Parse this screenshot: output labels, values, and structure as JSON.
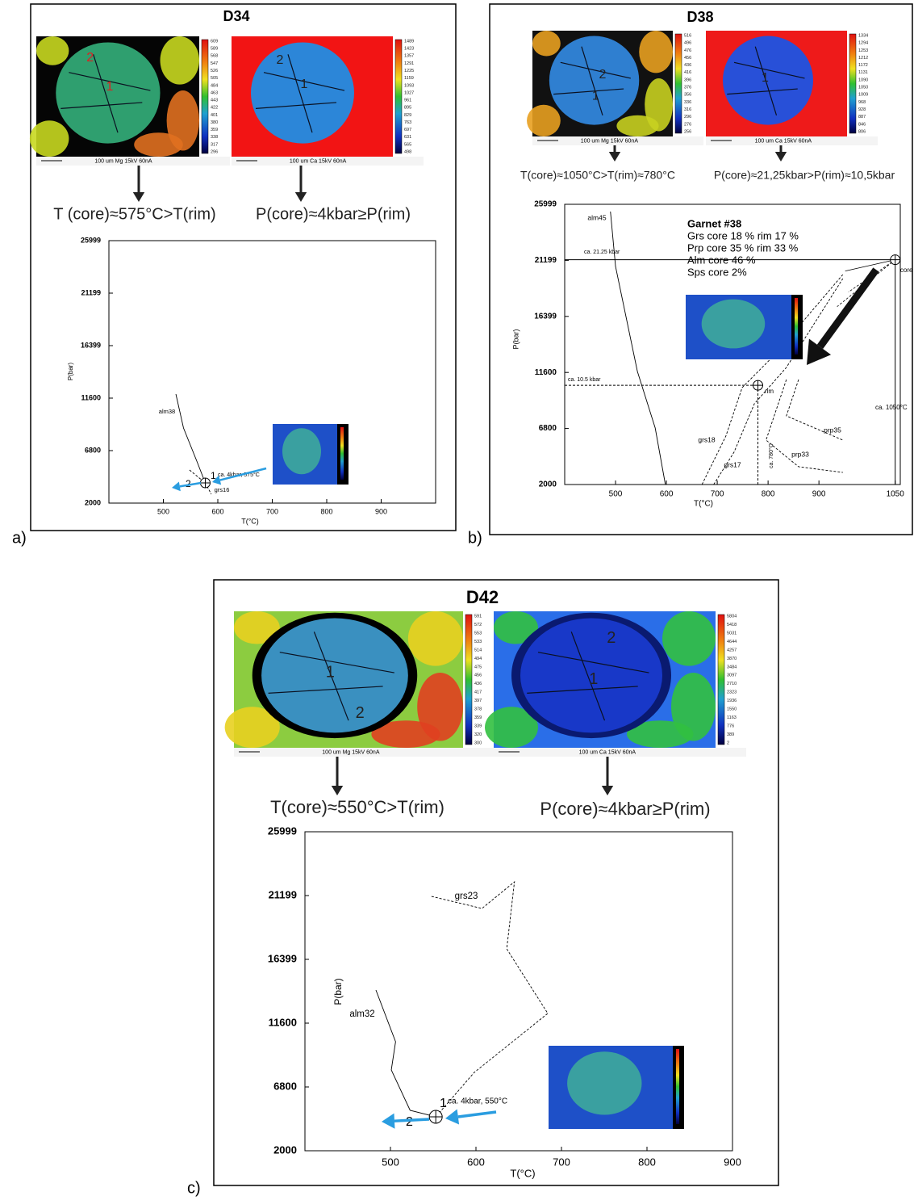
{
  "panels": [
    {
      "label": "a)",
      "title": "D34",
      "results": [
        "T (core)≈575°C>T(rim)",
        "P(core)≈4kbar≥P(rim)"
      ],
      "maps": [
        {
          "labels": [
            "2",
            "1"
          ],
          "colorbar": [
            609,
            589,
            568,
            547,
            526,
            505,
            484,
            463,
            443,
            422,
            401,
            380,
            359,
            338,
            317,
            296
          ],
          "caption": "100 um  Mg  15kV 60nA"
        },
        {
          "labels": [
            "2",
            "1"
          ],
          "colorbar": [
            1489,
            1423,
            1357,
            1291,
            1225,
            1159,
            1093,
            1027,
            961,
            895,
            829,
            763,
            697,
            631,
            565,
            498
          ],
          "caption": "100 um  Ca  15kV 60nA"
        }
      ]
    },
    {
      "label": "b)",
      "title": "D38",
      "results": [
        "T(core)≈1050°C>T(rim)≈780°C",
        "P(core)≈21,25kbar>P(rim)≈10,5kbar"
      ],
      "maps": [
        {
          "labels": [
            "2",
            "1"
          ],
          "colorbar": [
            516,
            496,
            476,
            456,
            436,
            416,
            396,
            376,
            356,
            336,
            316,
            296,
            276,
            256
          ],
          "caption": "100 um  Mg  15kV 60nA"
        },
        {
          "labels": [
            "1"
          ],
          "colorbar": [
            1334,
            1294,
            1253,
            1212,
            1172,
            1131,
            1090,
            1050,
            1009,
            968,
            928,
            887,
            846,
            806
          ],
          "caption": "100 um  Ca  15kV 60nA"
        }
      ]
    },
    {
      "label": "c)",
      "title": "D42",
      "results": [
        "T(core)≈550°C>T(rim)",
        "P(core)≈4kbar≥P(rim)"
      ],
      "maps": [
        {
          "labels": [
            "1",
            "2"
          ],
          "colorbar": [
            591,
            572,
            553,
            533,
            514,
            494,
            475,
            456,
            436,
            417,
            397,
            378,
            359,
            339,
            320,
            300
          ],
          "caption": "100 um  Mg  15kV 60nA"
        },
        {
          "labels": [
            "2",
            "1"
          ],
          "colorbar": [
            5804,
            5418,
            5031,
            4644,
            4257,
            3870,
            3484,
            3097,
            2710,
            2323,
            1936,
            1550,
            1163,
            776,
            389,
            2
          ],
          "caption": "100 um  Ca  15kV 60nA"
        }
      ]
    }
  ],
  "chart_data": [
    {
      "type": "line",
      "x_label": "T(°C)",
      "y_label": "P(bar)",
      "xlim": [
        400,
        1000
      ],
      "ylim": [
        2000,
        25999
      ],
      "xticks": [
        500,
        600,
        700,
        800,
        900
      ],
      "yticks": [
        2000,
        6800,
        11600,
        16399,
        21199,
        25999
      ],
      "series": [
        {
          "name": "alm38",
          "color": "#000000",
          "dashed": false,
          "x": [
            523,
            537,
            562,
            577
          ],
          "values": [
            11969,
            8867,
            5766,
            3846
          ]
        },
        {
          "name": "grs16",
          "color": "#000000",
          "dashed": true,
          "x": [
            548,
            577,
            588
          ],
          "values": [
            5028,
            3846,
            2812
          ]
        }
      ],
      "points": [
        {
          "x": 577,
          "y": 3846
        }
      ],
      "annotations": [
        "ca. 4kbar, 575°C",
        "1",
        "2"
      ]
    },
    {
      "type": "line",
      "x_label": "T(°C)",
      "y_label": "P(bar)",
      "xlim": [
        400,
        1060
      ],
      "ylim": [
        2000,
        25999
      ],
      "xticks": [
        500,
        600,
        700,
        800,
        900,
        1050
      ],
      "yticks": [
        2000,
        6800,
        11600,
        16399,
        21199,
        25999
      ],
      "series": [
        {
          "name": "alm45",
          "color": "#000000",
          "dashed": false,
          "x": [
            490,
            500,
            543,
            578,
            598
          ],
          "values": [
            25377,
            20674,
            11683,
            6841,
            2000
          ]
        },
        {
          "name": "grs18",
          "color": "#000000",
          "dashed": true,
          "x": [
            670,
            717,
            749,
            812,
            947
          ],
          "values": [
            2000,
            6150,
            10299,
            13066,
            19982
          ]
        },
        {
          "name": "grs17",
          "color": "#000000",
          "dashed": true,
          "x": [
            693,
            733,
            773,
            836,
            947
          ],
          "values": [
            2000,
            4766,
            8916,
            12028,
            19636
          ]
        },
        {
          "name": "prp35",
          "color": "#000000",
          "dashed": true,
          "x": [
            860,
            836,
            947
          ],
          "values": [
            10991,
            7879,
            5804
          ]
        },
        {
          "name": "prp33",
          "color": "#000000",
          "dashed": true,
          "x": [
            836,
            796,
            860,
            947
          ],
          "values": [
            10991,
            5804,
            3522,
            3037
          ]
        }
      ],
      "points": [
        {
          "label": "core",
          "x": 1050,
          "y": 21250
        },
        {
          "label": "rim",
          "x": 780,
          "y": 10500
        }
      ],
      "annotations": [
        "ca. 21.25 kbar",
        "ca. 10.5 kbar",
        "ca. 780°C",
        "ca. 1050°C"
      ],
      "text_box": [
        "Garnet #38",
        "Grs core 18 % rim 17 %",
        "Prp core 35 % rim 33 %",
        "Alm core 46 %",
        "Sps core 2%"
      ]
    },
    {
      "type": "line",
      "x_label": "T(°C)",
      "y_label": "P(bar)",
      "xlim": [
        400,
        900
      ],
      "ylim": [
        2000,
        25999
      ],
      "xticks": [
        500,
        600,
        700,
        800,
        900
      ],
      "yticks": [
        2000,
        6800,
        11600,
        16399,
        21199,
        25999
      ],
      "series": [
        {
          "name": "alm32",
          "color": "#000000",
          "dashed": false,
          "x": [
            483,
            506,
            501,
            523,
            553
          ],
          "values": [
            14090,
            10202,
            8076,
            5038,
            4552
          ]
        },
        {
          "name": "grs23",
          "color": "#000000",
          "dashed": true,
          "x": [
            548,
            607,
            645,
            636,
            684,
            598,
            553
          ],
          "values": [
            21138,
            20227,
            22232,
            17189,
            12329,
            7893,
            4552
          ]
        }
      ],
      "points": [
        {
          "x": 553,
          "y": 4552
        }
      ],
      "annotations": [
        "ca. 4kbar, 550°C",
        "1",
        "2"
      ]
    }
  ]
}
